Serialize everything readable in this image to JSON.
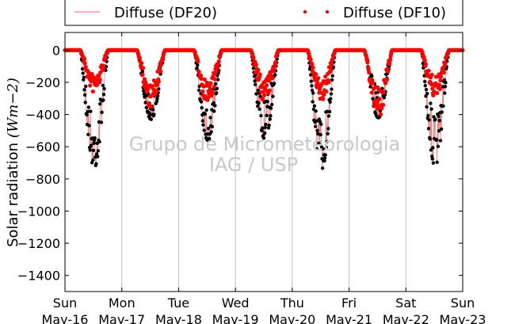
{
  "chart_data": {
    "type": "scatter",
    "title": "",
    "xlabel": "",
    "ylabel": "Solar radiation (Wm−2)",
    "ylabel_main": "Solar radiation ",
    "ylabel_unit": "(Wm−2)",
    "ylim": [
      -1500,
      110
    ],
    "yticks": [
      0,
      -200,
      -400,
      -600,
      -800,
      -1000,
      -1200,
      -1400
    ],
    "xlim": [
      "2012-05-16",
      "2012-05-23"
    ],
    "xticks": [
      {
        "day": "Sun",
        "date": "May-16"
      },
      {
        "day": "Mon",
        "date": "May-17"
      },
      {
        "day": "Tue",
        "date": "May-18"
      },
      {
        "day": "Wed",
        "date": "May-19"
      },
      {
        "day": "Thu",
        "date": "May-20"
      },
      {
        "day": "Fri",
        "date": "May-21"
      },
      {
        "day": "Sat",
        "date": "May-22"
      },
      {
        "day": "Sun",
        "date": "May-23"
      }
    ],
    "grid": "vertical",
    "legend_position": "top",
    "watermark": [
      "Grupo de Micrometeorologia",
      "IAG / USP"
    ],
    "series": [
      {
        "name": "Diffuse (DF20)",
        "style": "line",
        "color": "#f08080",
        "points_note": "traced by black dots; daily minima listed",
        "daily_min": [
          -730,
          -430,
          -560,
          -550,
          -740,
          -420,
          -720
        ]
      },
      {
        "name": "Diffuse (DF10)",
        "style": "dots",
        "color": "#ff0000",
        "daily_min": [
          -270,
          -360,
          -340,
          -320,
          -330,
          -420,
          -300
        ]
      }
    ],
    "background_dots_color": "#000000"
  }
}
